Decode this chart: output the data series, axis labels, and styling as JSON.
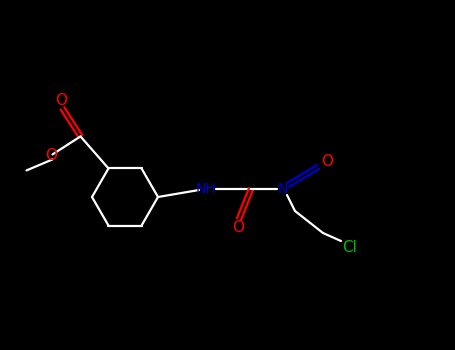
{
  "background_color": "#000000",
  "bond_color": "#ffffff",
  "atom_colors": {
    "O": "#ff0000",
    "N": "#0000cd",
    "Cl": "#00bb00",
    "C": "#ffffff"
  },
  "figsize": [
    4.55,
    3.5
  ],
  "dpi": 100,
  "lw": 1.6
}
